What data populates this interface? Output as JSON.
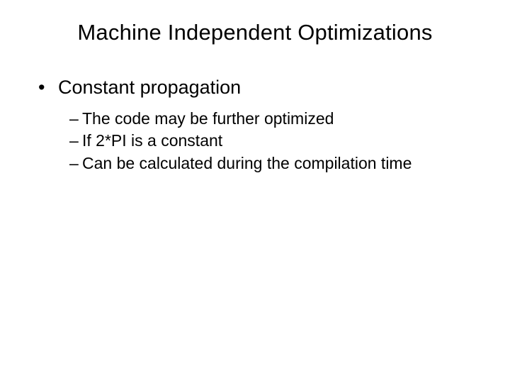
{
  "slide": {
    "title": "Machine Independent Optimizations",
    "bullet1": {
      "marker": "•",
      "text": "Constant propagation"
    },
    "sub": [
      {
        "dash": "–",
        "text": "The code may be further optimized"
      },
      {
        "dash": "–",
        "text": "If 2*PI is a constant"
      },
      {
        "dash": "–",
        "text": "Can be calculated during the compilation time"
      }
    ]
  },
  "colors": {
    "background": "#ffffff",
    "text": "#000000"
  },
  "typography": {
    "title_fontsize": 31,
    "level1_fontsize": 27,
    "level2_fontsize": 23,
    "font_family": "Arial"
  }
}
